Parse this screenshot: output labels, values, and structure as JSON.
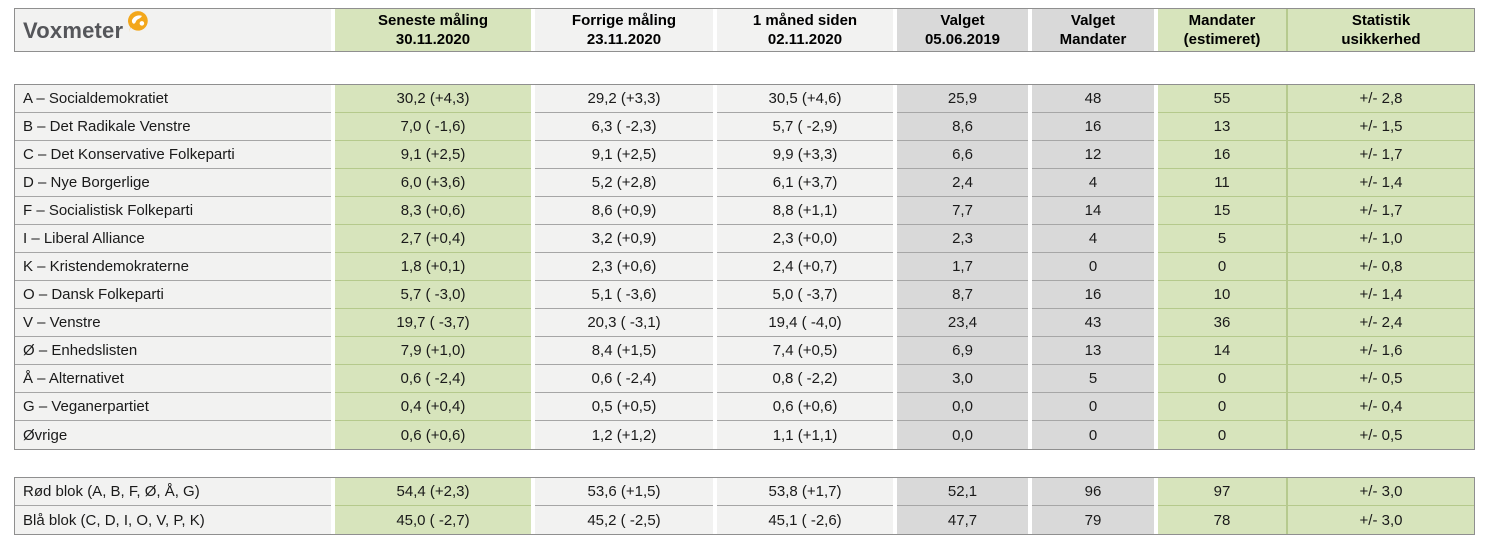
{
  "logo": {
    "text": "Voxmeter",
    "icon": "speech-bubble-globe-icon"
  },
  "colors": {
    "green_fill": "#d7e4bc",
    "green_line": "#b6ca8e",
    "gray_fill": "#d9d9d9",
    "light_fill": "#f2f2f1",
    "border": "#8f8f8f",
    "row_line": "#a6a6a6",
    "logo_orange": "#f3a71b",
    "logo_text_gray": "#55565a"
  },
  "chart_data": {
    "type": "table",
    "columns": [
      {
        "key": "party",
        "label": "",
        "sub": "",
        "style": "light"
      },
      {
        "key": "latest",
        "label": "Seneste måling",
        "sub": "30.11.2020",
        "style": "green"
      },
      {
        "key": "previous",
        "label": "Forrige måling",
        "sub": "23.11.2020",
        "style": "light"
      },
      {
        "key": "month",
        "label": "1 måned siden",
        "sub": "02.11.2020",
        "style": "light"
      },
      {
        "key": "election",
        "label": "Valget",
        "sub": "05.06.2019",
        "style": "gray"
      },
      {
        "key": "eseats",
        "label": "Valget",
        "sub": "Mandater",
        "style": "gray"
      },
      {
        "key": "seats",
        "label": "Mandater",
        "sub": "(estimeret)",
        "style": "green"
      },
      {
        "key": "unc",
        "label": "Statistik",
        "sub": "usikkerhed",
        "style": "green"
      }
    ],
    "rows": [
      {
        "party": "A – Socialdemokratiet",
        "latest": "30,2 (+4,3)",
        "previous": "29,2 (+3,3)",
        "month": "30,5 (+4,6)",
        "election": "25,9",
        "eseats": "48",
        "seats": "55",
        "unc": "+/- 2,8"
      },
      {
        "party": "B – Det Radikale Venstre",
        "latest": "7,0 ( -1,6)",
        "previous": "6,3 ( -2,3)",
        "month": "5,7 ( -2,9)",
        "election": "8,6",
        "eseats": "16",
        "seats": "13",
        "unc": "+/- 1,5"
      },
      {
        "party": "C – Det Konservative Folkeparti",
        "latest": "9,1 (+2,5)",
        "previous": "9,1 (+2,5)",
        "month": "9,9 (+3,3)",
        "election": "6,6",
        "eseats": "12",
        "seats": "16",
        "unc": "+/- 1,7"
      },
      {
        "party": "D – Nye Borgerlige",
        "latest": "6,0 (+3,6)",
        "previous": "5,2 (+2,8)",
        "month": "6,1 (+3,7)",
        "election": "2,4",
        "eseats": "4",
        "seats": "11",
        "unc": "+/- 1,4"
      },
      {
        "party": "F – Socialistisk Folkeparti",
        "latest": "8,3 (+0,6)",
        "previous": "8,6 (+0,9)",
        "month": "8,8 (+1,1)",
        "election": "7,7",
        "eseats": "14",
        "seats": "15",
        "unc": "+/- 1,7"
      },
      {
        "party": "I – Liberal Alliance",
        "latest": "2,7 (+0,4)",
        "previous": "3,2 (+0,9)",
        "month": "2,3 (+0,0)",
        "election": "2,3",
        "eseats": "4",
        "seats": "5",
        "unc": "+/- 1,0"
      },
      {
        "party": "K – Kristendemokraterne",
        "latest": "1,8 (+0,1)",
        "previous": "2,3 (+0,6)",
        "month": "2,4 (+0,7)",
        "election": "1,7",
        "eseats": "0",
        "seats": "0",
        "unc": "+/- 0,8"
      },
      {
        "party": "O – Dansk Folkeparti",
        "latest": "5,7 ( -3,0)",
        "previous": "5,1 ( -3,6)",
        "month": "5,0 ( -3,7)",
        "election": "8,7",
        "eseats": "16",
        "seats": "10",
        "unc": "+/- 1,4"
      },
      {
        "party": "V – Venstre",
        "latest": "19,7 ( -3,7)",
        "previous": "20,3 ( -3,1)",
        "month": "19,4 ( -4,0)",
        "election": "23,4",
        "eseats": "43",
        "seats": "36",
        "unc": "+/- 2,4"
      },
      {
        "party": "Ø – Enhedslisten",
        "latest": "7,9 (+1,0)",
        "previous": "8,4 (+1,5)",
        "month": "7,4 (+0,5)",
        "election": "6,9",
        "eseats": "13",
        "seats": "14",
        "unc": "+/- 1,6"
      },
      {
        "party": "Å – Alternativet",
        "latest": "0,6 ( -2,4)",
        "previous": "0,6 ( -2,4)",
        "month": "0,8 ( -2,2)",
        "election": "3,0",
        "eseats": "5",
        "seats": "0",
        "unc": "+/- 0,5"
      },
      {
        "party": "G – Veganerpartiet",
        "latest": "0,4 (+0,4)",
        "previous": "0,5 (+0,5)",
        "month": "0,6 (+0,6)",
        "election": "0,0",
        "eseats": "0",
        "seats": "0",
        "unc": "+/- 0,4"
      },
      {
        "party": "Øvrige",
        "latest": "0,6 (+0,6)",
        "previous": "1,2 (+1,2)",
        "month": "1,1 (+1,1)",
        "election": "0,0",
        "eseats": "0",
        "seats": "0",
        "unc": "+/- 0,5"
      }
    ],
    "totals": [
      {
        "party": "Rød blok (A, B, F, Ø, Å, G)",
        "latest": "54,4 (+2,3)",
        "previous": "53,6 (+1,5)",
        "month": "53,8 (+1,7)",
        "election": "52,1",
        "eseats": "96",
        "seats": "97",
        "unc": "+/- 3,0"
      },
      {
        "party": "Blå blok (C, D, I, O, V, P, K)",
        "latest": "45,0 ( -2,7)",
        "previous": "45,2 ( -2,5)",
        "month": "45,1 ( -2,6)",
        "election": "47,7",
        "eseats": "79",
        "seats": "78",
        "unc": "+/- 3,0"
      }
    ]
  }
}
